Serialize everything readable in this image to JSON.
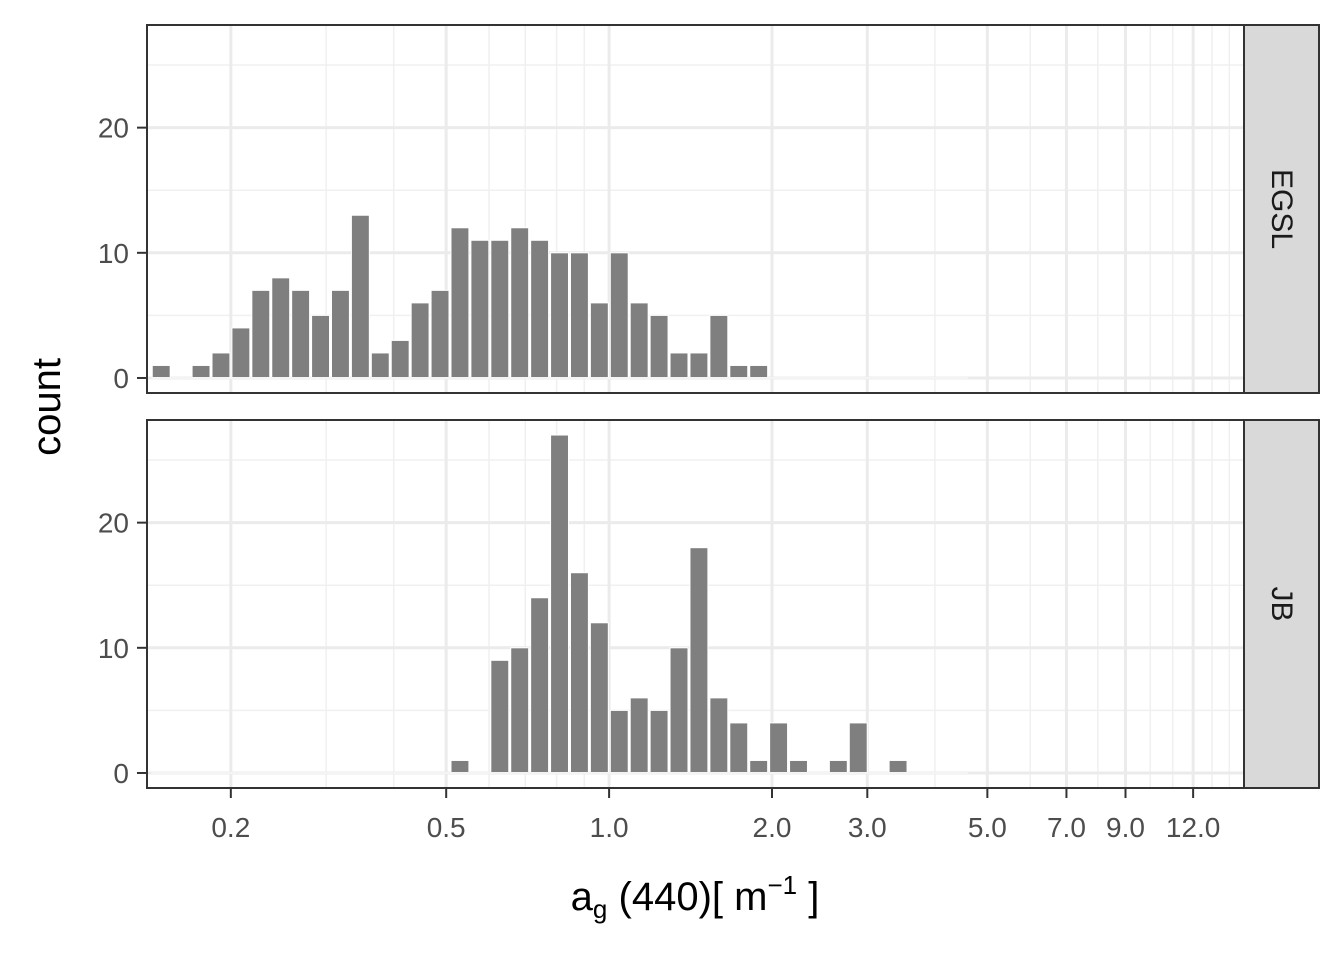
{
  "chart_data": {
    "type": "bar",
    "subtype": "faceted histogram",
    "x_scale": "log10",
    "xlim": [
      0.14,
      14.9
    ],
    "ylim": [
      -1.2,
      28.2
    ],
    "x_ticks": [
      {
        "value": 0.2,
        "label": "0.2"
      },
      {
        "value": 0.5,
        "label": "0.5"
      },
      {
        "value": 1.0,
        "label": "1.0"
      },
      {
        "value": 2.0,
        "label": "2.0"
      },
      {
        "value": 3.0,
        "label": "3.0"
      },
      {
        "value": 5.0,
        "label": "5.0"
      },
      {
        "value": 7.0,
        "label": "7.0"
      },
      {
        "value": 9.0,
        "label": "9.0"
      },
      {
        "value": 12.0,
        "label": "12.0"
      }
    ],
    "x_minor_gridlines": [
      0.3,
      0.4,
      0.6,
      0.7,
      0.8,
      0.9,
      4.0,
      6.0,
      8.0,
      10.0,
      11.0,
      13.0,
      14.0
    ],
    "y_ticks": [
      0,
      10,
      20
    ],
    "y_minor_gridlines": [
      5,
      15,
      25
    ],
    "grid": true,
    "xlabel": {
      "base": "a",
      "sub": "g",
      "mid": " (440)[ m",
      "sup": "−1",
      "end": " ]"
    },
    "ylabel": "count",
    "bins": {
      "log_start": -0.846,
      "log_width": 0.0368
    },
    "panels": [
      {
        "name": "EGSL",
        "counts": [
          1,
          0,
          1,
          2,
          4,
          7,
          8,
          7,
          5,
          7,
          13,
          2,
          3,
          6,
          7,
          12,
          11,
          11,
          12,
          11,
          10,
          10,
          6,
          10,
          6,
          5,
          2,
          2,
          5,
          1,
          1,
          0,
          0,
          0,
          0,
          0,
          0,
          0,
          0,
          0,
          0
        ]
      },
      {
        "name": "JB",
        "counts": [
          0,
          0,
          0,
          0,
          0,
          0,
          0,
          0,
          0,
          0,
          0,
          0,
          0,
          0,
          0,
          1,
          0,
          9,
          10,
          14,
          27,
          16,
          12,
          5,
          6,
          5,
          10,
          18,
          6,
          4,
          1,
          4,
          1,
          0,
          1,
          4,
          0,
          1,
          0,
          0,
          0
        ]
      }
    ],
    "bar_color": "#7f7f7f",
    "strip_color": "#d9d9d9"
  }
}
